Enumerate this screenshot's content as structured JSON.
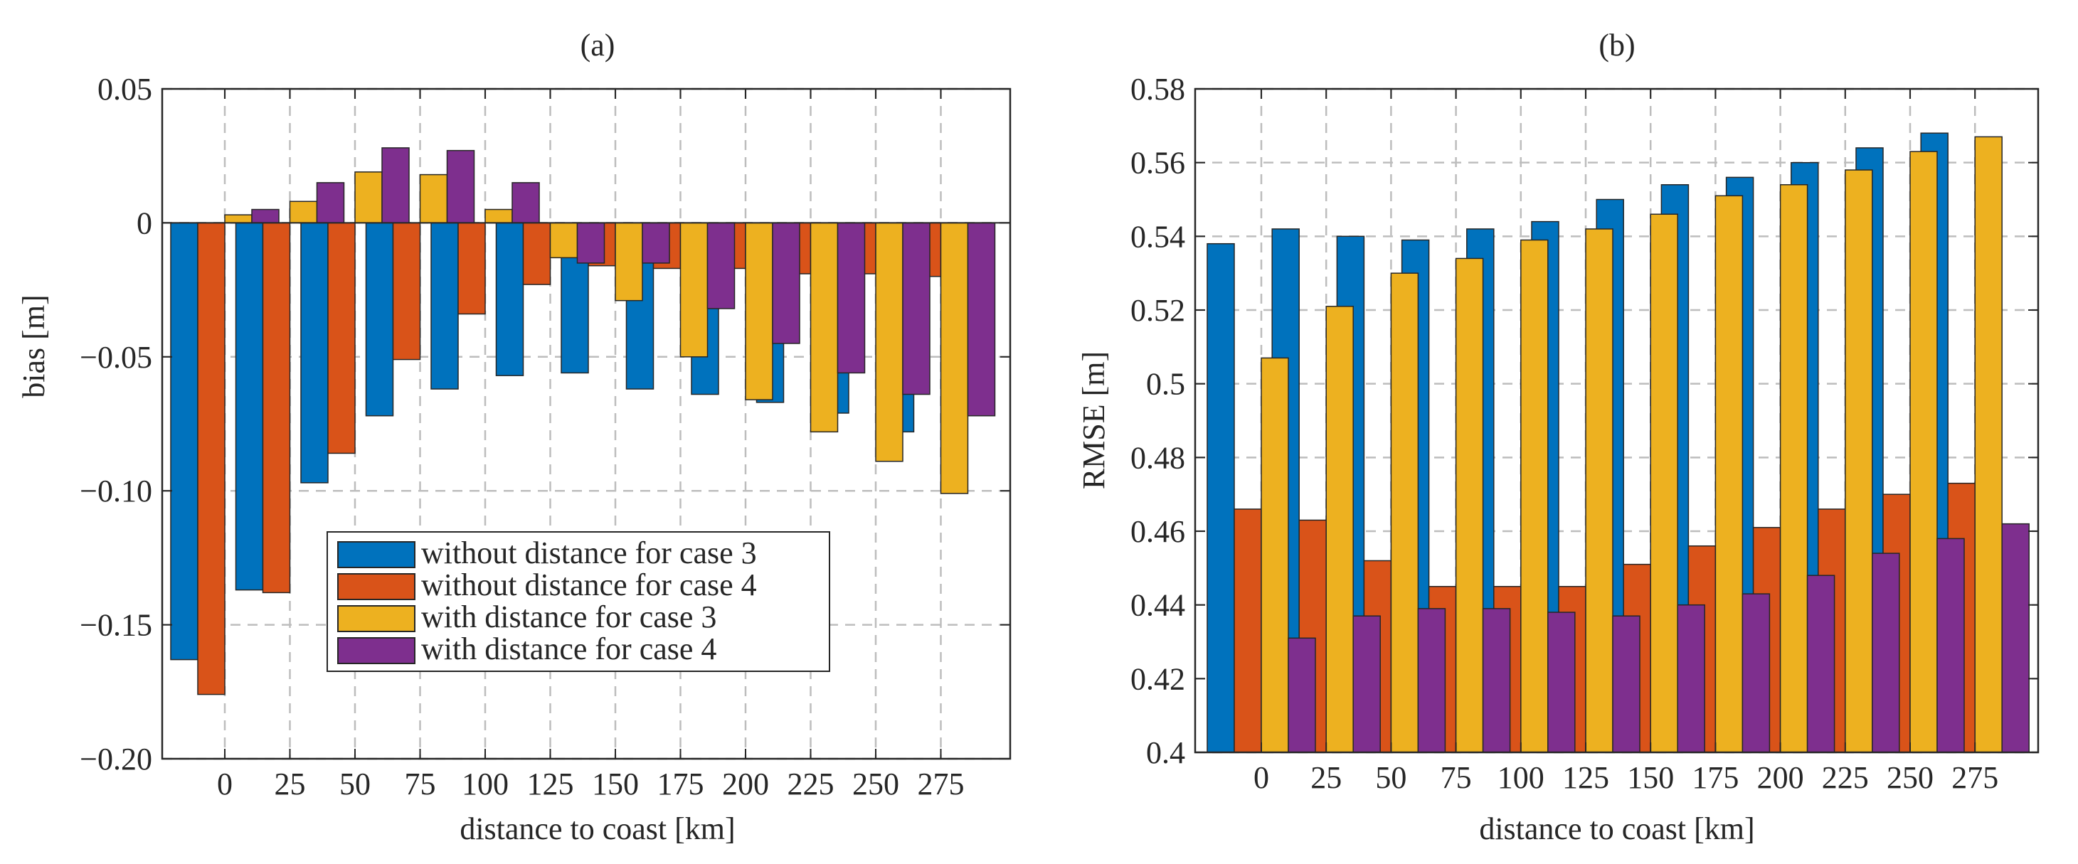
{
  "chart_data": [
    {
      "type": "bar",
      "title": "(a)",
      "xlabel": "distance to coast [km]",
      "ylabel": "bias [m]",
      "ylim": [
        -0.2,
        0.05
      ],
      "yticks": [
        0.05,
        0,
        -0.05,
        -0.1,
        -0.15,
        -0.2
      ],
      "ytick_labels": [
        "0.05",
        "0",
        "−0.05",
        "−0.10",
        "−0.15",
        "−0.20"
      ],
      "categories": [
        "0",
        "25",
        "50",
        "75",
        "100",
        "125",
        "150",
        "175",
        "200",
        "225",
        "250",
        "275"
      ],
      "grid": true,
      "legend_position": "bottom-center",
      "series": [
        {
          "name": "without distance for case 3",
          "color": "#0072BD",
          "values": [
            -0.163,
            -0.137,
            -0.097,
            -0.072,
            -0.062,
            -0.057,
            -0.056,
            -0.062,
            -0.064,
            -0.067,
            -0.071,
            -0.078
          ]
        },
        {
          "name": "without distance for case 4",
          "color": "#D95319",
          "values": [
            -0.176,
            -0.138,
            -0.086,
            -0.051,
            -0.034,
            -0.023,
            -0.016,
            -0.017,
            -0.017,
            -0.019,
            -0.019,
            -0.02
          ]
        },
        {
          "name": "with distance for case 3",
          "color": "#EDB120",
          "values": [
            0.003,
            0.008,
            0.019,
            0.018,
            0.005,
            -0.013,
            -0.029,
            -0.05,
            -0.066,
            -0.078,
            -0.089,
            -0.101
          ]
        },
        {
          "name": "with distance for case 4",
          "color": "#7E2F8E",
          "values": [
            0.005,
            0.015,
            0.028,
            0.027,
            0.015,
            -0.015,
            -0.015,
            -0.032,
            -0.045,
            -0.056,
            -0.064,
            -0.072
          ]
        }
      ]
    },
    {
      "type": "bar",
      "title": "(b)",
      "xlabel": "distance to coast [km]",
      "ylabel": "RMSE [m]",
      "ylim": [
        0.4,
        0.58
      ],
      "yticks": [
        0.58,
        0.56,
        0.54,
        0.52,
        0.5,
        0.48,
        0.46,
        0.44,
        0.42,
        0.4
      ],
      "ytick_labels": [
        "0.58",
        "0.56",
        "0.54",
        "0.52",
        "0.5",
        "0.48",
        "0.46",
        "0.44",
        "0.42",
        "0.4"
      ],
      "categories": [
        "0",
        "25",
        "50",
        "75",
        "100",
        "125",
        "150",
        "175",
        "200",
        "225",
        "250",
        "275"
      ],
      "grid": true,
      "series": [
        {
          "name": "without distance for case 3",
          "color": "#0072BD",
          "values": [
            0.538,
            0.542,
            0.54,
            0.539,
            0.542,
            0.544,
            0.55,
            0.554,
            0.556,
            0.56,
            0.564,
            0.568
          ]
        },
        {
          "name": "without distance for case 4",
          "color": "#D95319",
          "values": [
            0.466,
            0.463,
            0.452,
            0.445,
            0.445,
            0.445,
            0.451,
            0.456,
            0.461,
            0.466,
            0.47,
            0.473
          ]
        },
        {
          "name": "with distance for case 3",
          "color": "#EDB120",
          "values": [
            0.507,
            0.521,
            0.53,
            0.534,
            0.539,
            0.542,
            0.546,
            0.551,
            0.554,
            0.558,
            0.563,
            0.567
          ]
        },
        {
          "name": "with distance for case 4",
          "color": "#7E2F8E",
          "values": [
            0.431,
            0.437,
            0.439,
            0.439,
            0.438,
            0.437,
            0.44,
            0.443,
            0.448,
            0.454,
            0.458,
            0.462
          ]
        }
      ]
    }
  ]
}
